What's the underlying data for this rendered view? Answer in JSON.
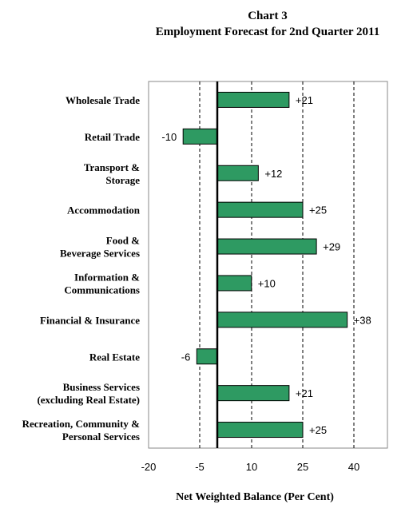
{
  "chart_data": {
    "type": "bar",
    "orientation": "horizontal",
    "title": "Chart 3",
    "subtitle": "Employment Forecast for 2nd Quarter 2011",
    "xlabel": "Net Weighted Balance (Per Cent)",
    "ylabel": "",
    "xlim": [
      -20,
      50
    ],
    "x_ticks": [
      -20,
      -5,
      10,
      25,
      40
    ],
    "x_tick_labels": [
      "-20",
      "-5",
      "10",
      "25",
      "40"
    ],
    "gridlines": "vertical dashed",
    "bar_color": "#2e9a62",
    "categories": [
      [
        "Wholesale Trade"
      ],
      [
        "Retail Trade"
      ],
      [
        "Transport &",
        "Storage"
      ],
      [
        "Accommodation"
      ],
      [
        "Food &",
        "Beverage Services"
      ],
      [
        "Information &",
        "Communications"
      ],
      [
        "Financial & Insurance"
      ],
      [
        "Real Estate"
      ],
      [
        "Business Services",
        "(excluding Real Estate)"
      ],
      [
        "Recreation, Community &",
        "Personal Services"
      ]
    ],
    "values": [
      21,
      -10,
      12,
      25,
      29,
      10,
      38,
      -6,
      21,
      25
    ],
    "data_labels": [
      "+21",
      "-10",
      "+12",
      "+25",
      "+29",
      "+10",
      "+38",
      "-6",
      "+21",
      "+25"
    ]
  }
}
